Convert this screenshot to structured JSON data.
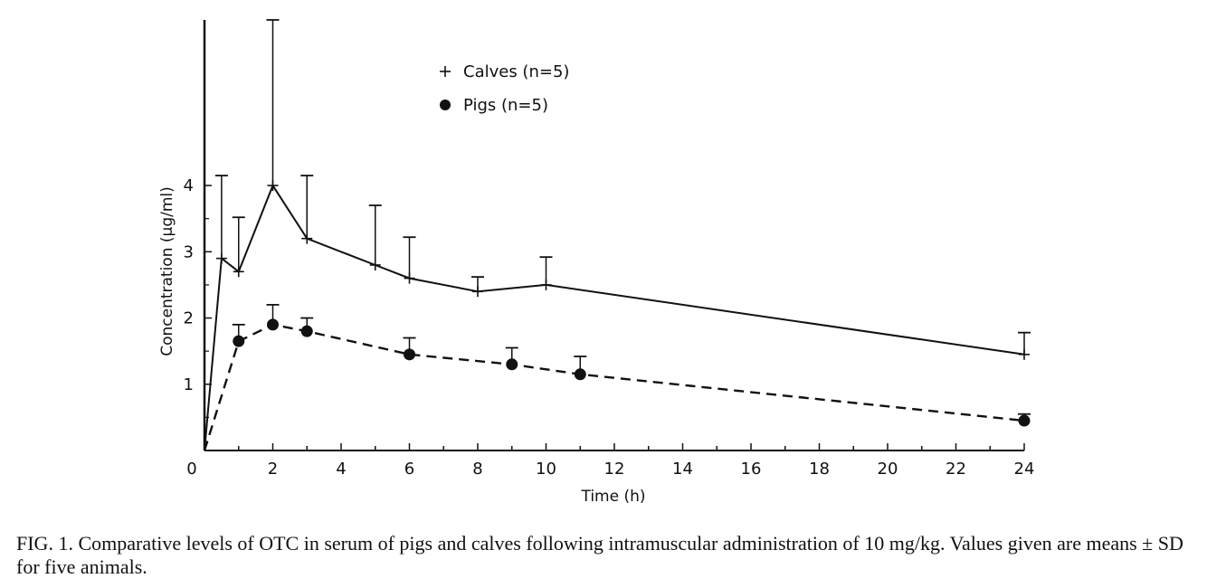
{
  "caption": "FIG. 1. Comparative levels of OTC in serum of pigs and calves following intramuscular administration of 10 mg/kg. Values given are means ± SD for five animals.",
  "chart_data": {
    "type": "line",
    "xlabel": "Time (h)",
    "ylabel": "Concentration (μg/ml)",
    "xlim": [
      0,
      24
    ],
    "ylim": [
      0,
      6.5
    ],
    "x_ticks": [
      0,
      2,
      4,
      6,
      8,
      10,
      12,
      14,
      16,
      18,
      20,
      22,
      24
    ],
    "y_ticks": [
      1,
      2,
      3,
      4
    ],
    "grid": false,
    "legend_position": "top-center",
    "series": [
      {
        "name": "Calves",
        "legend_label": "Calves (n=5)",
        "marker": "plus",
        "line_style": "solid",
        "color": "#111111",
        "x": [
          0,
          0.5,
          1,
          2,
          3,
          5,
          6,
          8,
          10,
          24
        ],
        "y": [
          0,
          2.9,
          2.7,
          4.0,
          3.2,
          2.8,
          2.6,
          2.4,
          2.5,
          1.45
        ],
        "sd": [
          0,
          1.25,
          0.82,
          2.5,
          0.95,
          0.9,
          0.62,
          0.22,
          0.42,
          0.33
        ]
      },
      {
        "name": "Pigs",
        "legend_label": "Pigs (n=5)",
        "marker": "filled-circle",
        "line_style": "dashed",
        "color": "#111111",
        "x": [
          0,
          1,
          2,
          3,
          6,
          9,
          11,
          24
        ],
        "y": [
          0,
          1.65,
          1.9,
          1.8,
          1.45,
          1.3,
          1.15,
          0.45
        ],
        "sd": [
          0,
          0.25,
          0.3,
          0.2,
          0.25,
          0.25,
          0.27,
          0.1
        ]
      }
    ]
  }
}
